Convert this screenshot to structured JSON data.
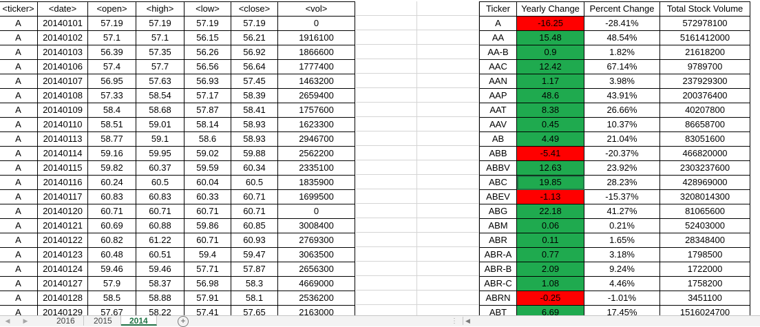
{
  "left_table": {
    "headers": [
      "<ticker>",
      "<date>",
      "<open>",
      "<high>",
      "<low>",
      "<close>",
      "<vol>"
    ],
    "rows": [
      [
        "A",
        "20140101",
        "57.19",
        "57.19",
        "57.19",
        "57.19",
        "0"
      ],
      [
        "A",
        "20140102",
        "57.1",
        "57.1",
        "56.15",
        "56.21",
        "1916100"
      ],
      [
        "A",
        "20140103",
        "56.39",
        "57.35",
        "56.26",
        "56.92",
        "1866600"
      ],
      [
        "A",
        "20140106",
        "57.4",
        "57.7",
        "56.56",
        "56.64",
        "1777400"
      ],
      [
        "A",
        "20140107",
        "56.95",
        "57.63",
        "56.93",
        "57.45",
        "1463200"
      ],
      [
        "A",
        "20140108",
        "57.33",
        "58.54",
        "57.17",
        "58.39",
        "2659400"
      ],
      [
        "A",
        "20140109",
        "58.4",
        "58.68",
        "57.87",
        "58.41",
        "1757600"
      ],
      [
        "A",
        "20140110",
        "58.51",
        "59.01",
        "58.14",
        "58.93",
        "1623300"
      ],
      [
        "A",
        "20140113",
        "58.77",
        "59.1",
        "58.6",
        "58.93",
        "2946700"
      ],
      [
        "A",
        "20140114",
        "59.16",
        "59.95",
        "59.02",
        "59.88",
        "2562200"
      ],
      [
        "A",
        "20140115",
        "59.82",
        "60.37",
        "59.59",
        "60.34",
        "2335100"
      ],
      [
        "A",
        "20140116",
        "60.24",
        "60.5",
        "60.04",
        "60.5",
        "1835900"
      ],
      [
        "A",
        "20140117",
        "60.83",
        "60.83",
        "60.33",
        "60.71",
        "1699500"
      ],
      [
        "A",
        "20140120",
        "60.71",
        "60.71",
        "60.71",
        "60.71",
        "0"
      ],
      [
        "A",
        "20140121",
        "60.69",
        "60.88",
        "59.86",
        "60.85",
        "3008400"
      ],
      [
        "A",
        "20140122",
        "60.82",
        "61.22",
        "60.71",
        "60.93",
        "2769300"
      ],
      [
        "A",
        "20140123",
        "60.48",
        "60.51",
        "59.4",
        "59.47",
        "3063500"
      ],
      [
        "A",
        "20140124",
        "59.46",
        "59.46",
        "57.71",
        "57.87",
        "2656300"
      ],
      [
        "A",
        "20140127",
        "57.9",
        "58.37",
        "56.98",
        "58.3",
        "4669000"
      ],
      [
        "A",
        "20140128",
        "58.5",
        "58.88",
        "57.91",
        "58.1",
        "2536200"
      ],
      [
        "A",
        "20140129",
        "57.67",
        "58.22",
        "57.41",
        "57.65",
        "2163000"
      ]
    ]
  },
  "right_table": {
    "headers": [
      "Ticker",
      "Yearly Change",
      "Percent Change",
      "Total Stock Volume"
    ],
    "rows": [
      {
        "ticker": "A",
        "change": "-16.25",
        "percent": "-28.41%",
        "volume": "572978100",
        "status": "red"
      },
      {
        "ticker": "AA",
        "change": "15.48",
        "percent": "48.54%",
        "volume": "5161412000",
        "status": "green"
      },
      {
        "ticker": "AA-B",
        "change": "0.9",
        "percent": "1.82%",
        "volume": "21618200",
        "status": "green"
      },
      {
        "ticker": "AAC",
        "change": "12.42",
        "percent": "67.14%",
        "volume": "9789700",
        "status": "green"
      },
      {
        "ticker": "AAN",
        "change": "1.17",
        "percent": "3.98%",
        "volume": "237929300",
        "status": "green"
      },
      {
        "ticker": "AAP",
        "change": "48.6",
        "percent": "43.91%",
        "volume": "200376400",
        "status": "green"
      },
      {
        "ticker": "AAT",
        "change": "8.38",
        "percent": "26.66%",
        "volume": "40207800",
        "status": "green"
      },
      {
        "ticker": "AAV",
        "change": "0.45",
        "percent": "10.37%",
        "volume": "86658700",
        "status": "green"
      },
      {
        "ticker": "AB",
        "change": "4.49",
        "percent": "21.04%",
        "volume": "83051600",
        "status": "green"
      },
      {
        "ticker": "ABB",
        "change": "-5.41",
        "percent": "-20.37%",
        "volume": "466820000",
        "status": "red"
      },
      {
        "ticker": "ABBV",
        "change": "12.63",
        "percent": "23.92%",
        "volume": "2303237600",
        "status": "green"
      },
      {
        "ticker": "ABC",
        "change": "19.85",
        "percent": "28.23%",
        "volume": "428969000",
        "status": "green"
      },
      {
        "ticker": "ABEV",
        "change": "-1.13",
        "percent": "-15.37%",
        "volume": "3208014300",
        "status": "red"
      },
      {
        "ticker": "ABG",
        "change": "22.18",
        "percent": "41.27%",
        "volume": "81065600",
        "status": "green"
      },
      {
        "ticker": "ABM",
        "change": "0.06",
        "percent": "0.21%",
        "volume": "52403000",
        "status": "green"
      },
      {
        "ticker": "ABR",
        "change": "0.11",
        "percent": "1.65%",
        "volume": "28348400",
        "status": "green"
      },
      {
        "ticker": "ABR-A",
        "change": "0.77",
        "percent": "3.18%",
        "volume": "1798500",
        "status": "green"
      },
      {
        "ticker": "ABR-B",
        "change": "2.09",
        "percent": "9.24%",
        "volume": "1722000",
        "status": "green"
      },
      {
        "ticker": "ABR-C",
        "change": "1.08",
        "percent": "4.46%",
        "volume": "1758200",
        "status": "green"
      },
      {
        "ticker": "ABRN",
        "change": "-0.25",
        "percent": "-1.01%",
        "volume": "3451100",
        "status": "red"
      },
      {
        "ticker": "ABT",
        "change": "6.69",
        "percent": "17.45%",
        "volume": "1516024700",
        "status": "green"
      }
    ]
  },
  "selected_cell": {
    "ticker": "ABC",
    "column": "change"
  },
  "tabs": [
    {
      "label": "2016",
      "active": false
    },
    {
      "label": "2015",
      "active": false
    },
    {
      "label": "2014",
      "active": true
    }
  ],
  "add_sheet_label": "+",
  "colors": {
    "positive": "#1faa4f",
    "negative": "#ff0000",
    "accent": "#217346"
  }
}
